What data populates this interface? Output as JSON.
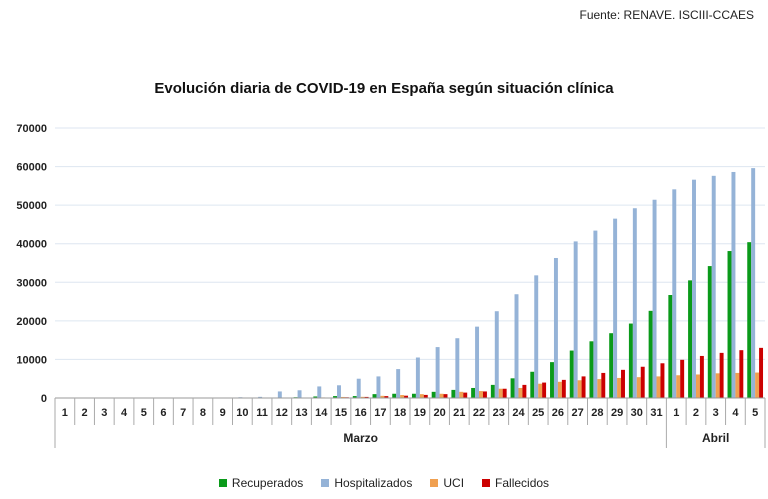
{
  "source": "Fuente: RENAVE. ISCIII-CCAES",
  "chart_data": {
    "type": "bar",
    "title": "Evolución diaria de COVID-19 en España según situación clínica",
    "xlabel": "",
    "ylabel": "",
    "ylim": [
      0,
      70000
    ],
    "yticks": [
      "0",
      "10000",
      "20000",
      "30000",
      "40000",
      "50000",
      "60000",
      "70000"
    ],
    "categories": [
      "1",
      "2",
      "3",
      "4",
      "5",
      "6",
      "7",
      "8",
      "9",
      "10",
      "11",
      "12",
      "13",
      "14",
      "15",
      "16",
      "17",
      "18",
      "19",
      "20",
      "21",
      "22",
      "23",
      "24",
      "25",
      "26",
      "27",
      "28",
      "29",
      "30",
      "31",
      "1",
      "2",
      "3",
      "4",
      "5"
    ],
    "groups": [
      {
        "label": "Marzo",
        "count": 31
      },
      {
        "label": "Abril",
        "count": 5
      }
    ],
    "series": [
      {
        "name": "Recuperados",
        "color": "#0a9a1a",
        "values": [
          0,
          0,
          0,
          0,
          0,
          0,
          0,
          0,
          0,
          0,
          0,
          0,
          200,
          400,
          500,
          500,
          1000,
          1100,
          1100,
          1600,
          2100,
          2600,
          3400,
          5100,
          6800,
          9300,
          12300,
          14700,
          16800,
          19300,
          22600,
          26700,
          30500,
          34200,
          38100,
          40400
        ]
      },
      {
        "name": "Hospitalizados",
        "color": "#95b3d7",
        "values": [
          0,
          0,
          0,
          0,
          0,
          0,
          0,
          0,
          0,
          200,
          300,
          1700,
          2000,
          3000,
          3300,
          5000,
          5600,
          7500,
          10500,
          13200,
          15500,
          18500,
          22500,
          26900,
          31800,
          36300,
          40600,
          43400,
          46500,
          49200,
          51400,
          54100,
          56600,
          57600,
          58600,
          59600
        ]
      },
      {
        "name": "UCI",
        "color": "#f0a050",
        "values": [
          0,
          0,
          0,
          0,
          0,
          0,
          0,
          0,
          0,
          0,
          0,
          0,
          100,
          150,
          270,
          300,
          560,
          770,
          1000,
          1100,
          1600,
          1800,
          2400,
          2600,
          3700,
          4200,
          4600,
          4900,
          5200,
          5400,
          5600,
          5900,
          6100,
          6400,
          6500,
          6600
        ]
      },
      {
        "name": "Fallecidos",
        "color": "#cc0000",
        "values": [
          0,
          0,
          0,
          0,
          0,
          0,
          0,
          0,
          0,
          0,
          0,
          0,
          80,
          120,
          190,
          280,
          490,
          600,
          800,
          1000,
          1400,
          1700,
          2400,
          3400,
          4000,
          4700,
          5600,
          6500,
          7300,
          8100,
          9000,
          9900,
          10900,
          11700,
          12400,
          13000
        ]
      }
    ],
    "legend_position": "bottom",
    "grid": true
  }
}
